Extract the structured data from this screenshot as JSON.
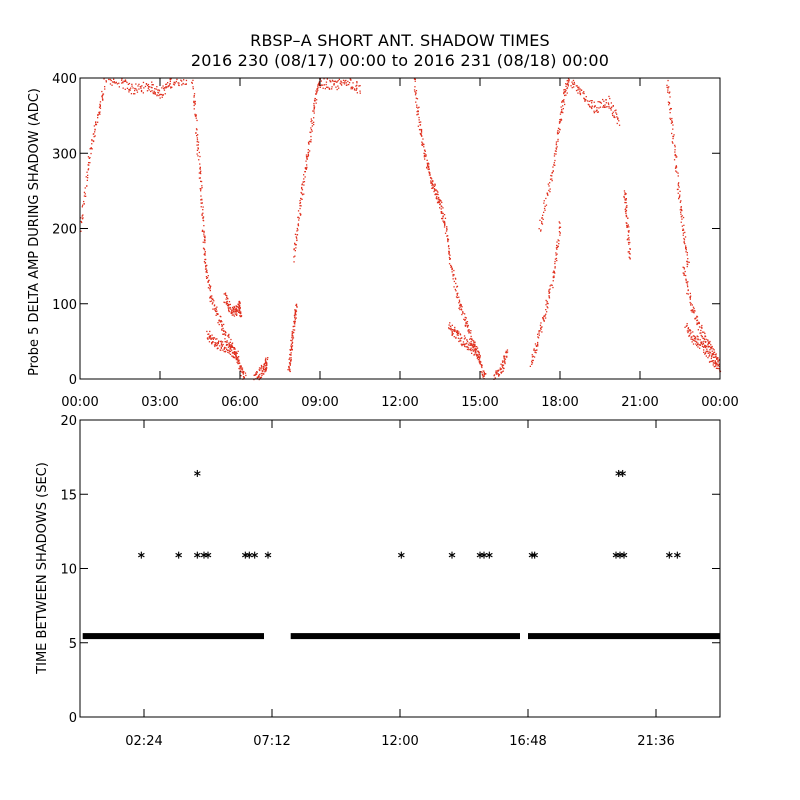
{
  "title": "RBSP–A SHORT ANT. SHADOW TIMES",
  "subtitle": "2016 230 (08/17) 00:00 to 2016 231 (08/18) 00:00",
  "colors": {
    "top_points": "#e0301e",
    "bottom_points": "#000000",
    "axes": "#000000"
  },
  "chart_data": [
    {
      "type": "scatter",
      "ylabel": "Probe 5 DELTA AMP DURING SHADOW (ADC)",
      "xlabel": "",
      "xlim_hours": [
        0,
        24
      ],
      "ylim": [
        0,
        400
      ],
      "x_ticks": [
        0,
        3,
        6,
        9,
        12,
        15,
        18,
        21,
        24
      ],
      "x_tick_labels": [
        "00:00",
        "03:00",
        "06:00",
        "09:00",
        "12:00",
        "15:00",
        "18:00",
        "21:00",
        "00:00"
      ],
      "y_ticks": [
        0,
        100,
        200,
        300,
        400
      ],
      "y_tick_labels": [
        "0",
        "100",
        "200",
        "300",
        "400"
      ],
      "series": [
        {
          "tracks": [
            {
              "x": [
                0.0,
                0.3,
                0.6,
                0.9
              ],
              "y": [
                200,
                290,
                340,
                390
              ]
            },
            {
              "x": [
                0.9,
                1.5,
                2.0,
                2.6,
                3.0,
                3.4,
                4.0
              ],
              "y": [
                400,
                395,
                385,
                390,
                380,
                395,
                400
              ]
            },
            {
              "x": [
                4.2,
                4.35,
                4.5,
                4.6,
                4.7
              ],
              "y": [
                400,
                330,
                260,
                200,
                150
              ]
            },
            {
              "x": [
                4.7,
                4.9,
                5.2,
                5.5,
                5.8,
                6.0,
                6.2
              ],
              "y": [
                150,
                110,
                80,
                55,
                35,
                15,
                0
              ]
            },
            {
              "x": [
                4.75,
                5.0,
                5.3,
                5.6,
                5.9
              ],
              "y": [
                60,
                50,
                45,
                42,
                30
              ]
            },
            {
              "x": [
                5.4,
                5.6,
                5.8,
                5.95,
                6.0
              ],
              "y": [
                110,
                95,
                90,
                100,
                85
              ]
            },
            {
              "x": [
                6.5,
                6.7,
                6.9,
                7.0
              ],
              "y": [
                0,
                8,
                15,
                25
              ]
            },
            {
              "x": [
                7.8,
                7.9,
                8.0,
                8.1
              ],
              "y": [
                10,
                40,
                70,
                100
              ]
            },
            {
              "x": [
                8.0,
                8.2,
                8.4,
                8.6,
                8.8,
                9.0
              ],
              "y": [
                160,
                220,
                270,
                320,
                370,
                400
              ]
            },
            {
              "x": [
                9.0,
                9.5,
                10.0,
                10.5
              ],
              "y": [
                395,
                390,
                398,
                385
              ]
            },
            {
              "x": [
                12.5,
                12.7,
                12.9,
                13.1,
                13.3,
                13.5,
                13.7
              ],
              "y": [
                400,
                340,
                300,
                270,
                250,
                230,
                200
              ]
            },
            {
              "x": [
                13.7,
                13.9,
                14.2,
                14.5,
                14.8,
                15.0,
                15.2
              ],
              "y": [
                200,
                150,
                100,
                70,
                45,
                20,
                0
              ]
            },
            {
              "x": [
                13.8,
                14.1,
                14.4,
                14.7,
                15.0
              ],
              "y": [
                70,
                60,
                50,
                40,
                30
              ]
            },
            {
              "x": [
                15.5,
                15.8,
                16.0
              ],
              "y": [
                0,
                15,
                35
              ]
            },
            {
              "x": [
                16.9,
                17.2,
                17.5,
                17.8,
                18.0
              ],
              "y": [
                20,
                60,
                100,
                150,
                210
              ]
            },
            {
              "x": [
                17.2,
                17.6,
                17.9,
                18.1,
                18.3
              ],
              "y": [
                200,
                260,
                320,
                370,
                400
              ]
            },
            {
              "x": [
                18.3,
                18.8,
                19.3,
                19.8,
                20.2
              ],
              "y": [
                400,
                380,
                360,
                370,
                340
              ]
            },
            {
              "x": [
                20.4,
                20.5,
                20.6
              ],
              "y": [
                250,
                210,
                160
              ]
            },
            {
              "x": [
                22.0,
                22.2,
                22.4,
                22.6,
                22.8
              ],
              "y": [
                400,
                330,
                260,
                200,
                150
              ]
            },
            {
              "x": [
                22.6,
                22.9,
                23.2,
                23.5,
                23.8,
                24.0
              ],
              "y": [
                150,
                100,
                70,
                50,
                30,
                15
              ]
            },
            {
              "x": [
                22.7,
                23.0,
                23.3,
                23.6,
                23.9
              ],
              "y": [
                70,
                55,
                45,
                30,
                20
              ]
            }
          ]
        }
      ]
    },
    {
      "type": "scatter",
      "ylabel": "TIME BETWEEN SHADOWS (SEC)",
      "xlabel": "",
      "xlim_hours": [
        0,
        24
      ],
      "ylim": [
        0,
        20
      ],
      "x_ticks": [
        2.4,
        7.2,
        12.0,
        16.8,
        21.6
      ],
      "x_tick_labels": [
        "02:24",
        "07:12",
        "12:00",
        "16:48",
        "21:36"
      ],
      "y_ticks": [
        0,
        5,
        10,
        15,
        20
      ],
      "y_tick_labels": [
        "0",
        "5",
        "10",
        "15",
        "20"
      ],
      "baseline_value": 5.45,
      "baseline_segments": [
        [
          0.1,
          6.9
        ],
        [
          7.9,
          16.5
        ],
        [
          16.8,
          24.0
        ]
      ],
      "series": [
        {
          "x": [
            2.3,
            3.7,
            4.4,
            4.65,
            4.8,
            6.2,
            6.35,
            6.55,
            7.05,
            12.05,
            13.95,
            15.0,
            15.15,
            15.35,
            16.95,
            17.05,
            20.1,
            20.25,
            20.4,
            22.1,
            22.4,
            4.4,
            20.2,
            20.35
          ],
          "y": [
            10.9,
            10.9,
            10.9,
            10.9,
            10.9,
            10.9,
            10.9,
            10.9,
            10.9,
            10.9,
            10.9,
            10.9,
            10.9,
            10.9,
            10.9,
            10.9,
            10.9,
            10.9,
            10.9,
            10.9,
            10.9,
            16.4,
            16.4,
            16.4
          ]
        }
      ]
    }
  ]
}
